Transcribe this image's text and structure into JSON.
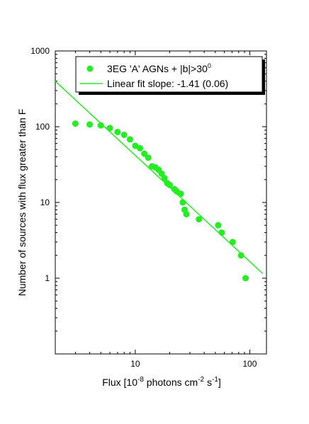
{
  "chart_data": {
    "type": "scatter",
    "xlabel": {
      "pre": "Flux [10",
      "exp1": "-8",
      "mid": " photons cm",
      "exp2": "-2",
      "mid2": " s",
      "exp3": "-1",
      "post": "]"
    },
    "ylabel": "Number of sources with flux greater than F",
    "x_scale": "log",
    "y_scale": "log",
    "xlim": [
      2,
      140
    ],
    "ylim": [
      0.1,
      1000
    ],
    "x_ticks": [
      10,
      100
    ],
    "x_tick_labels": [
      "10",
      "100"
    ],
    "y_ticks": [
      1,
      10,
      100,
      1000
    ],
    "y_tick_labels": [
      "1",
      "10",
      "100",
      "1000"
    ],
    "grid": false,
    "legend_position": "top-right",
    "legend": [
      {
        "marker": "circle",
        "label": "3EG 'A' AGNs + |b|>30",
        "label_sup": "0"
      },
      {
        "marker": "line",
        "label": "Linear fit slope: -1.41 (0.06)"
      }
    ],
    "color": "#22ee22",
    "series": [
      {
        "name": "3EG 'A' AGNs + |b|>30",
        "kind": "scatter",
        "x": [
          3.0,
          4.0,
          5.0,
          6.0,
          7.0,
          8.0,
          9.0,
          10.0,
          11.0,
          12.0,
          13.0,
          14.0,
          15.0,
          16.0,
          17.0,
          18.0,
          19.0,
          20.0,
          22.0,
          23.0,
          25.0,
          26.0,
          27.0,
          28.0,
          36.0,
          53.0,
          57.0,
          71.0,
          84.0,
          92.0
        ],
        "y": [
          110,
          107,
          104,
          96,
          85,
          78,
          68,
          56,
          52,
          44,
          39,
          30,
          29,
          27,
          24,
          21,
          18,
          17,
          15,
          14,
          13,
          10,
          8,
          7,
          6,
          5,
          4,
          3,
          2,
          1
        ]
      },
      {
        "name": "Linear fit slope: -1.41 (0.06)",
        "kind": "line",
        "slope": -1.41,
        "x": [
          2,
          130
        ],
        "y": [
          400,
          1.15
        ]
      }
    ]
  }
}
